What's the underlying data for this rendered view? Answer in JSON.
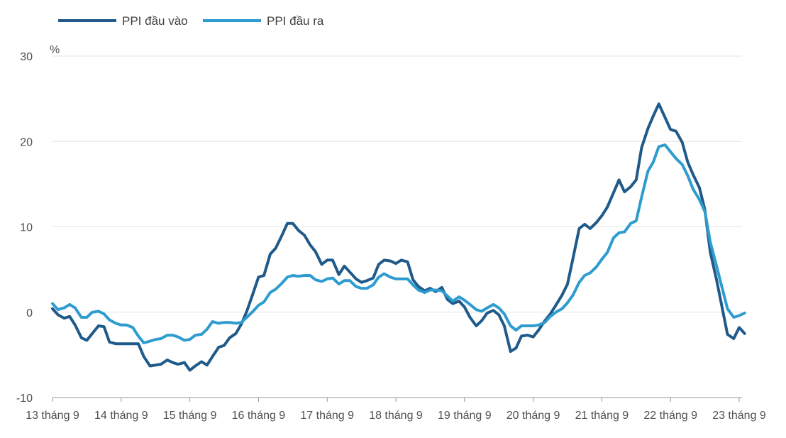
{
  "chart_data": {
    "type": "line",
    "unit_label": "%",
    "ylim": [
      -10,
      30
    ],
    "y_ticks": [
      -10,
      0,
      10,
      20,
      30
    ],
    "x_tick_labels": [
      "13 tháng 9",
      "14 tháng 9",
      "15 tháng 9",
      "16 tháng 9",
      "17 tháng 9",
      "18 tháng 9",
      "19 tháng 9",
      "20 tháng 9",
      "21 tháng 9",
      "22 tháng 9",
      "23 tháng 9"
    ],
    "x_range": [
      2013.0,
      2023.0
    ],
    "grid": true,
    "legend_position": "top-left",
    "series": [
      {
        "name": "PPI đầu vào",
        "color": "#1f5a8a",
        "points": [
          [
            2013.0,
            0.4
          ],
          [
            2013.08,
            -0.3
          ],
          [
            2013.17,
            -0.7
          ],
          [
            2013.25,
            -0.5
          ],
          [
            2013.33,
            -1.5
          ],
          [
            2013.42,
            -3.0
          ],
          [
            2013.5,
            -3.3
          ],
          [
            2013.58,
            -2.5
          ],
          [
            2013.67,
            -1.6
          ],
          [
            2013.75,
            -1.7
          ],
          [
            2013.83,
            -3.5
          ],
          [
            2013.92,
            -3.7
          ],
          [
            2014.0,
            -3.7
          ],
          [
            2014.08,
            -3.7
          ],
          [
            2014.17,
            -3.7
          ],
          [
            2014.25,
            -3.7
          ],
          [
            2014.33,
            -5.2
          ],
          [
            2014.42,
            -6.3
          ],
          [
            2014.5,
            -6.2
          ],
          [
            2014.58,
            -6.1
          ],
          [
            2014.67,
            -5.6
          ],
          [
            2014.75,
            -5.9
          ],
          [
            2014.83,
            -6.1
          ],
          [
            2014.92,
            -5.9
          ],
          [
            2015.0,
            -6.8
          ],
          [
            2015.08,
            -6.3
          ],
          [
            2015.17,
            -5.8
          ],
          [
            2015.25,
            -6.2
          ],
          [
            2015.33,
            -5.2
          ],
          [
            2015.42,
            -4.1
          ],
          [
            2015.5,
            -3.9
          ],
          [
            2015.58,
            -3.0
          ],
          [
            2015.67,
            -2.5
          ],
          [
            2015.75,
            -1.4
          ],
          [
            2015.83,
            0.1
          ],
          [
            2015.92,
            2.2
          ],
          [
            2016.0,
            4.1
          ],
          [
            2016.08,
            4.3
          ],
          [
            2016.17,
            6.8
          ],
          [
            2016.25,
            7.5
          ],
          [
            2016.33,
            8.8
          ],
          [
            2016.42,
            10.4
          ],
          [
            2016.5,
            10.4
          ],
          [
            2016.58,
            9.6
          ],
          [
            2016.67,
            9.0
          ],
          [
            2016.75,
            7.9
          ],
          [
            2016.83,
            7.1
          ],
          [
            2016.92,
            5.6
          ],
          [
            2017.0,
            6.1
          ],
          [
            2017.08,
            6.1
          ],
          [
            2017.17,
            4.4
          ],
          [
            2017.25,
            5.4
          ],
          [
            2017.33,
            4.7
          ],
          [
            2017.42,
            3.9
          ],
          [
            2017.5,
            3.5
          ],
          [
            2017.58,
            3.7
          ],
          [
            2017.67,
            4.0
          ],
          [
            2017.75,
            5.6
          ],
          [
            2017.83,
            6.1
          ],
          [
            2017.92,
            6.0
          ],
          [
            2018.0,
            5.7
          ],
          [
            2018.08,
            6.1
          ],
          [
            2018.17,
            5.9
          ],
          [
            2018.25,
            3.8
          ],
          [
            2018.33,
            3.0
          ],
          [
            2018.42,
            2.5
          ],
          [
            2018.5,
            2.8
          ],
          [
            2018.58,
            2.4
          ],
          [
            2018.67,
            2.9
          ],
          [
            2018.75,
            1.5
          ],
          [
            2018.83,
            1.0
          ],
          [
            2018.92,
            1.3
          ],
          [
            2019.0,
            0.6
          ],
          [
            2019.08,
            -0.6
          ],
          [
            2019.17,
            -1.6
          ],
          [
            2019.25,
            -1.0
          ],
          [
            2019.33,
            -0.1
          ],
          [
            2019.42,
            0.2
          ],
          [
            2019.5,
            -0.3
          ],
          [
            2019.58,
            -1.6
          ],
          [
            2019.67,
            -4.6
          ],
          [
            2019.75,
            -4.2
          ],
          [
            2019.83,
            -2.8
          ],
          [
            2019.92,
            -2.7
          ],
          [
            2020.0,
            -2.9
          ],
          [
            2020.08,
            -2.1
          ],
          [
            2020.17,
            -1.0
          ],
          [
            2020.25,
            -0.2
          ],
          [
            2020.33,
            0.8
          ],
          [
            2020.42,
            2.0
          ],
          [
            2020.5,
            3.3
          ],
          [
            2020.58,
            6.3
          ],
          [
            2020.67,
            9.8
          ],
          [
            2020.75,
            10.3
          ],
          [
            2020.83,
            9.8
          ],
          [
            2020.92,
            10.5
          ],
          [
            2021.0,
            11.3
          ],
          [
            2021.08,
            12.3
          ],
          [
            2021.17,
            14.0
          ],
          [
            2021.25,
            15.5
          ],
          [
            2021.33,
            14.1
          ],
          [
            2021.42,
            14.7
          ],
          [
            2021.5,
            15.5
          ],
          [
            2021.58,
            19.3
          ],
          [
            2021.67,
            21.5
          ],
          [
            2021.75,
            23.0
          ],
          [
            2021.83,
            24.4
          ],
          [
            2021.92,
            22.8
          ],
          [
            2022.0,
            21.4
          ],
          [
            2022.08,
            21.2
          ],
          [
            2022.17,
            19.9
          ],
          [
            2022.25,
            17.6
          ],
          [
            2022.33,
            16.1
          ],
          [
            2022.42,
            14.6
          ],
          [
            2022.5,
            12.0
          ],
          [
            2022.58,
            7.0
          ],
          [
            2022.67,
            3.8
          ],
          [
            2022.75,
            0.6
          ],
          [
            2022.83,
            -2.6
          ],
          [
            2022.92,
            -3.1
          ],
          [
            2023.0,
            -1.8
          ],
          [
            2023.08,
            -2.5
          ]
        ]
      },
      {
        "name": "PPI đầu ra",
        "color": "#2e9ccf",
        "points": [
          [
            2013.0,
            1.0
          ],
          [
            2013.08,
            0.3
          ],
          [
            2013.17,
            0.5
          ],
          [
            2013.25,
            0.9
          ],
          [
            2013.33,
            0.5
          ],
          [
            2013.42,
            -0.6
          ],
          [
            2013.5,
            -0.6
          ],
          [
            2013.58,
            0.0
          ],
          [
            2013.67,
            0.1
          ],
          [
            2013.75,
            -0.2
          ],
          [
            2013.83,
            -0.9
          ],
          [
            2013.92,
            -1.3
          ],
          [
            2014.0,
            -1.5
          ],
          [
            2014.08,
            -1.5
          ],
          [
            2014.17,
            -1.8
          ],
          [
            2014.25,
            -2.8
          ],
          [
            2014.33,
            -3.6
          ],
          [
            2014.42,
            -3.4
          ],
          [
            2014.5,
            -3.2
          ],
          [
            2014.58,
            -3.1
          ],
          [
            2014.67,
            -2.7
          ],
          [
            2014.75,
            -2.7
          ],
          [
            2014.83,
            -2.9
          ],
          [
            2014.92,
            -3.3
          ],
          [
            2015.0,
            -3.2
          ],
          [
            2015.08,
            -2.7
          ],
          [
            2015.17,
            -2.6
          ],
          [
            2015.25,
            -2.0
          ],
          [
            2015.33,
            -1.1
          ],
          [
            2015.42,
            -1.3
          ],
          [
            2015.5,
            -1.2
          ],
          [
            2015.58,
            -1.2
          ],
          [
            2015.67,
            -1.3
          ],
          [
            2015.75,
            -1.2
          ],
          [
            2015.83,
            -0.6
          ],
          [
            2015.92,
            0.1
          ],
          [
            2016.0,
            0.8
          ],
          [
            2016.08,
            1.2
          ],
          [
            2016.17,
            2.3
          ],
          [
            2016.25,
            2.7
          ],
          [
            2016.33,
            3.3
          ],
          [
            2016.42,
            4.1
          ],
          [
            2016.5,
            4.3
          ],
          [
            2016.58,
            4.2
          ],
          [
            2016.67,
            4.3
          ],
          [
            2016.75,
            4.3
          ],
          [
            2016.83,
            3.8
          ],
          [
            2016.92,
            3.6
          ],
          [
            2017.0,
            3.9
          ],
          [
            2017.08,
            4.0
          ],
          [
            2017.17,
            3.3
          ],
          [
            2017.25,
            3.7
          ],
          [
            2017.33,
            3.7
          ],
          [
            2017.42,
            3.0
          ],
          [
            2017.5,
            2.8
          ],
          [
            2017.58,
            2.8
          ],
          [
            2017.67,
            3.2
          ],
          [
            2017.75,
            4.1
          ],
          [
            2017.83,
            4.5
          ],
          [
            2017.92,
            4.1
          ],
          [
            2018.0,
            3.9
          ],
          [
            2018.08,
            3.9
          ],
          [
            2018.17,
            3.9
          ],
          [
            2018.25,
            3.2
          ],
          [
            2018.33,
            2.6
          ],
          [
            2018.42,
            2.3
          ],
          [
            2018.5,
            2.6
          ],
          [
            2018.58,
            2.6
          ],
          [
            2018.67,
            2.5
          ],
          [
            2018.75,
            1.9
          ],
          [
            2018.83,
            1.3
          ],
          [
            2018.92,
            1.8
          ],
          [
            2019.0,
            1.4
          ],
          [
            2019.08,
            0.9
          ],
          [
            2019.17,
            0.3
          ],
          [
            2019.25,
            0.1
          ],
          [
            2019.33,
            0.5
          ],
          [
            2019.42,
            0.9
          ],
          [
            2019.5,
            0.5
          ],
          [
            2019.58,
            -0.2
          ],
          [
            2019.67,
            -1.6
          ],
          [
            2019.75,
            -2.1
          ],
          [
            2019.83,
            -1.6
          ],
          [
            2019.92,
            -1.6
          ],
          [
            2020.0,
            -1.6
          ],
          [
            2020.08,
            -1.5
          ],
          [
            2020.17,
            -1.2
          ],
          [
            2020.25,
            -0.5
          ],
          [
            2020.33,
            0.0
          ],
          [
            2020.42,
            0.4
          ],
          [
            2020.5,
            1.1
          ],
          [
            2020.58,
            2.0
          ],
          [
            2020.67,
            3.5
          ],
          [
            2020.75,
            4.3
          ],
          [
            2020.83,
            4.6
          ],
          [
            2020.92,
            5.3
          ],
          [
            2021.0,
            6.2
          ],
          [
            2021.08,
            7.0
          ],
          [
            2021.17,
            8.7
          ],
          [
            2021.25,
            9.3
          ],
          [
            2021.33,
            9.4
          ],
          [
            2021.42,
            10.4
          ],
          [
            2021.5,
            10.7
          ],
          [
            2021.58,
            13.5
          ],
          [
            2021.67,
            16.5
          ],
          [
            2021.75,
            17.6
          ],
          [
            2021.83,
            19.4
          ],
          [
            2021.92,
            19.6
          ],
          [
            2022.0,
            18.8
          ],
          [
            2022.08,
            18.0
          ],
          [
            2022.17,
            17.3
          ],
          [
            2022.25,
            16.0
          ],
          [
            2022.33,
            14.4
          ],
          [
            2022.42,
            13.2
          ],
          [
            2022.5,
            11.8
          ],
          [
            2022.58,
            8.2
          ],
          [
            2022.67,
            5.4
          ],
          [
            2022.75,
            2.9
          ],
          [
            2022.83,
            0.4
          ],
          [
            2022.92,
            -0.6
          ],
          [
            2023.0,
            -0.4
          ],
          [
            2023.08,
            -0.1
          ]
        ]
      }
    ]
  }
}
